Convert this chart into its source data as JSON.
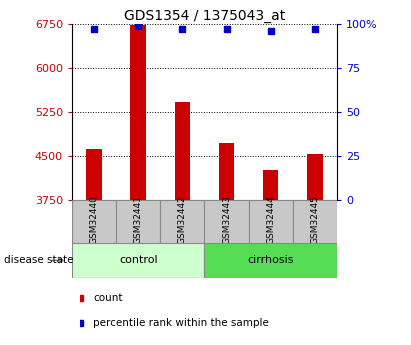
{
  "title": "GDS1354 / 1375043_at",
  "samples": [
    "GSM32440",
    "GSM32441",
    "GSM32442",
    "GSM32443",
    "GSM32444",
    "GSM32445"
  ],
  "counts": [
    4620,
    6730,
    5430,
    4720,
    4270,
    4530
  ],
  "percentile_ranks": [
    97,
    99,
    97,
    97,
    96,
    97
  ],
  "ymin": 3750,
  "ymax": 6750,
  "yticks": [
    3750,
    4500,
    5250,
    6000,
    6750
  ],
  "right_yticks": [
    0,
    25,
    50,
    75,
    100
  ],
  "right_ytick_labels": [
    "0",
    "25",
    "50",
    "75",
    "100%"
  ],
  "bar_color": "#cc0000",
  "percentile_color": "#0000cc",
  "group_box_color": "#c8c8c8",
  "control_color": "#ccffcc",
  "cirrhosis_color": "#55dd55",
  "dotted_line_color": "#000000",
  "legend_count_color": "#cc0000",
  "legend_percentile_color": "#0000cc",
  "disease_state_label": "disease state",
  "arrow_color": "#888888",
  "groups_info": [
    {
      "label": "control",
      "start": 0,
      "end": 2,
      "color": "#ccffcc"
    },
    {
      "label": "cirrhosis",
      "start": 3,
      "end": 5,
      "color": "#55dd55"
    }
  ]
}
